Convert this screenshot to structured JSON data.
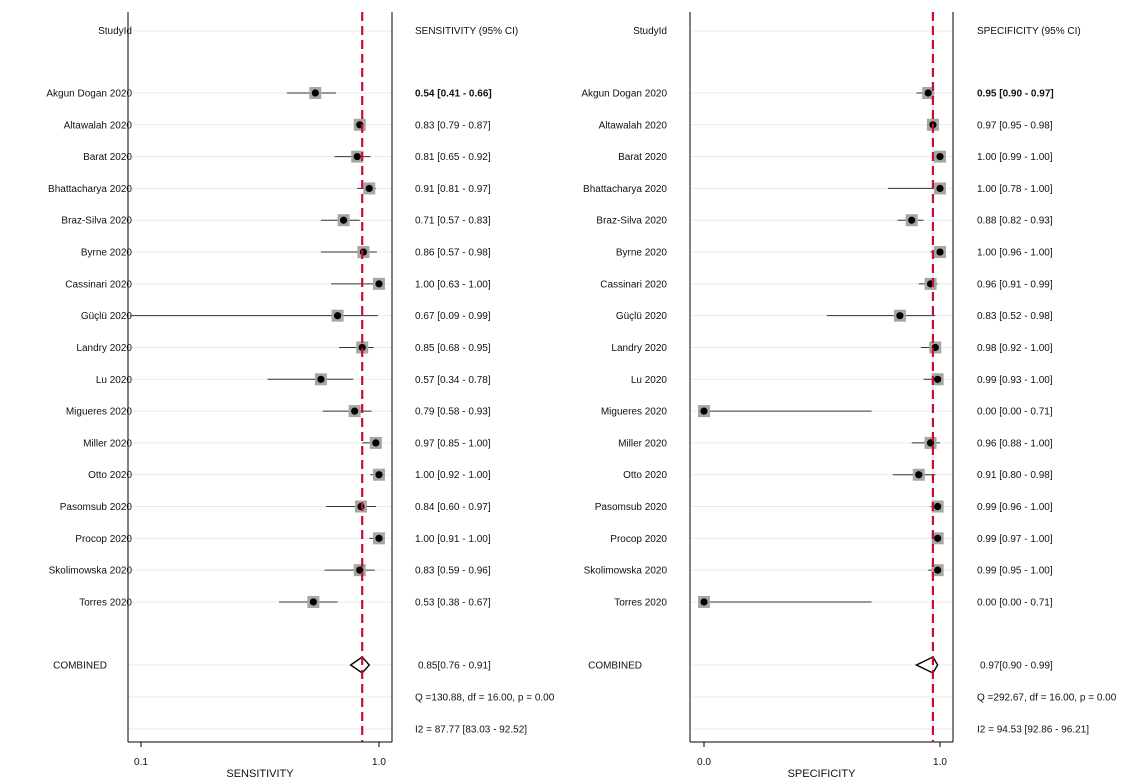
{
  "chart_data": [
    {
      "type": "forest",
      "scale": "log",
      "xlabel": "SENSITIVITY",
      "xlim": [
        0.1,
        1.0
      ],
      "xticks": [
        "0.1",
        "1.0"
      ],
      "reference_line": 0.85,
      "header_label": "StudyId",
      "header_stat": "SENSITIVITY (95% CI)",
      "studies": [
        {
          "name": "Akgun Dogan 2020",
          "est": 0.54,
          "lo": 0.41,
          "hi": 0.66,
          "text": "0.54 [0.41 - 0.66]",
          "bold": true
        },
        {
          "name": "Altawalah 2020",
          "est": 0.83,
          "lo": 0.79,
          "hi": 0.87,
          "text": "0.83 [0.79 - 0.87]"
        },
        {
          "name": "Barat 2020",
          "est": 0.81,
          "lo": 0.65,
          "hi": 0.92,
          "text": "0.81 [0.65 - 0.92]"
        },
        {
          "name": "Bhattacharya 2020",
          "est": 0.91,
          "lo": 0.81,
          "hi": 0.97,
          "text": "0.91 [0.81 - 0.97]"
        },
        {
          "name": "Braz-Silva 2020",
          "est": 0.71,
          "lo": 0.57,
          "hi": 0.83,
          "text": "0.71 [0.57 - 0.83]"
        },
        {
          "name": "Byrne 2020",
          "est": 0.86,
          "lo": 0.57,
          "hi": 0.98,
          "text": "0.86 [0.57 - 0.98]"
        },
        {
          "name": "Cassinari 2020",
          "est": 1.0,
          "lo": 0.63,
          "hi": 1.0,
          "text": "1.00 [0.63 - 1.00]"
        },
        {
          "name": "Güçlü 2020",
          "est": 0.67,
          "lo": 0.09,
          "hi": 0.99,
          "text": "0.67 [0.09 - 0.99]"
        },
        {
          "name": "Landry 2020",
          "est": 0.85,
          "lo": 0.68,
          "hi": 0.95,
          "text": "0.85 [0.68 - 0.95]"
        },
        {
          "name": "Lu 2020",
          "est": 0.57,
          "lo": 0.34,
          "hi": 0.78,
          "text": "0.57 [0.34 - 0.78]"
        },
        {
          "name": "Migueres 2020",
          "est": 0.79,
          "lo": 0.58,
          "hi": 0.93,
          "text": "0.79 [0.58 - 0.93]"
        },
        {
          "name": "Miller 2020",
          "est": 0.97,
          "lo": 0.85,
          "hi": 1.0,
          "text": "0.97 [0.85 - 1.00]"
        },
        {
          "name": "Otto 2020",
          "est": 1.0,
          "lo": 0.92,
          "hi": 1.0,
          "text": "1.00 [0.92 - 1.00]"
        },
        {
          "name": "Pasomsub 2020",
          "est": 0.84,
          "lo": 0.6,
          "hi": 0.97,
          "text": "0.84 [0.60 - 0.97]"
        },
        {
          "name": "Procop 2020",
          "est": 1.0,
          "lo": 0.91,
          "hi": 1.0,
          "text": "1.00 [0.91 - 1.00]"
        },
        {
          "name": "Skolimowska 2020",
          "est": 0.83,
          "lo": 0.59,
          "hi": 0.96,
          "text": "0.83 [0.59 - 0.96]"
        },
        {
          "name": "Torres 2020",
          "est": 0.53,
          "lo": 0.38,
          "hi": 0.67,
          "text": "0.53 [0.38 - 0.67]"
        }
      ],
      "combined": {
        "label": "COMBINED",
        "est": 0.85,
        "lo": 0.76,
        "hi": 0.91,
        "text": "0.85[0.76 - 0.91]"
      },
      "q_text": "Q =130.88, df = 16.00, p =  0.00",
      "i2_text": "I2 = 87.77 [83.03 - 92.52]"
    },
    {
      "type": "forest",
      "scale": "linear",
      "xlabel": "SPECIFICITY",
      "xlim": [
        0.0,
        1.0
      ],
      "xticks": [
        "0.0",
        "1.0"
      ],
      "reference_line": 0.97,
      "header_label": "StudyId",
      "header_stat": "SPECIFICITY (95% CI)",
      "studies": [
        {
          "name": "Akgun Dogan 2020",
          "est": 0.95,
          "lo": 0.9,
          "hi": 0.97,
          "text": "0.95 [0.90 - 0.97]",
          "bold": true
        },
        {
          "name": "Altawalah 2020",
          "est": 0.97,
          "lo": 0.95,
          "hi": 0.98,
          "text": "0.97 [0.95 - 0.98]"
        },
        {
          "name": "Barat 2020",
          "est": 1.0,
          "lo": 0.99,
          "hi": 1.0,
          "text": "1.00 [0.99 - 1.00]"
        },
        {
          "name": "Bhattacharya 2020",
          "est": 1.0,
          "lo": 0.78,
          "hi": 1.0,
          "text": "1.00 [0.78 - 1.00]"
        },
        {
          "name": "Braz-Silva 2020",
          "est": 0.88,
          "lo": 0.82,
          "hi": 0.93,
          "text": "0.88 [0.82 - 0.93]"
        },
        {
          "name": "Byrne 2020",
          "est": 1.0,
          "lo": 0.96,
          "hi": 1.0,
          "text": "1.00 [0.96 - 1.00]"
        },
        {
          "name": "Cassinari 2020",
          "est": 0.96,
          "lo": 0.91,
          "hi": 0.99,
          "text": "0.96 [0.91 - 0.99]"
        },
        {
          "name": "Güçlü 2020",
          "est": 0.83,
          "lo": 0.52,
          "hi": 0.98,
          "text": "0.83 [0.52 - 0.98]"
        },
        {
          "name": "Landry 2020",
          "est": 0.98,
          "lo": 0.92,
          "hi": 1.0,
          "text": "0.98 [0.92 - 1.00]"
        },
        {
          "name": "Lu 2020",
          "est": 0.99,
          "lo": 0.93,
          "hi": 1.0,
          "text": "0.99 [0.93 - 1.00]"
        },
        {
          "name": "Migueres 2020",
          "est": 0.0,
          "lo": 0.0,
          "hi": 0.71,
          "text": "0.00 [0.00 - 0.71]"
        },
        {
          "name": "Miller 2020",
          "est": 0.96,
          "lo": 0.88,
          "hi": 1.0,
          "text": "0.96 [0.88 - 1.00]"
        },
        {
          "name": "Otto 2020",
          "est": 0.91,
          "lo": 0.8,
          "hi": 0.98,
          "text": "0.91 [0.80 - 0.98]"
        },
        {
          "name": "Pasomsub 2020",
          "est": 0.99,
          "lo": 0.96,
          "hi": 1.0,
          "text": "0.99 [0.96 - 1.00]"
        },
        {
          "name": "Procop 2020",
          "est": 0.99,
          "lo": 0.97,
          "hi": 1.0,
          "text": "0.99 [0.97 - 1.00]"
        },
        {
          "name": "Skolimowska 2020",
          "est": 0.99,
          "lo": 0.95,
          "hi": 1.0,
          "text": "0.99 [0.95 - 1.00]"
        },
        {
          "name": "Torres 2020",
          "est": 0.0,
          "lo": 0.0,
          "hi": 0.71,
          "text": "0.00 [0.00 - 0.71]"
        }
      ],
      "combined": {
        "label": "COMBINED",
        "est": 0.97,
        "lo": 0.9,
        "hi": 0.99,
        "text": "0.97[0.90 - 0.99]"
      },
      "q_text": "Q =292.67, df = 16.00, p =  0.00",
      "i2_text": "I2 = 94.53 [92.86 - 96.21]"
    }
  ],
  "colors": {
    "reference_line": "#c8102e",
    "marker_box": "#a6a6a6",
    "marker_dot": "#000000",
    "ci_line": "#333333",
    "row_line": "#e4ecf2",
    "axis": "#000000"
  }
}
